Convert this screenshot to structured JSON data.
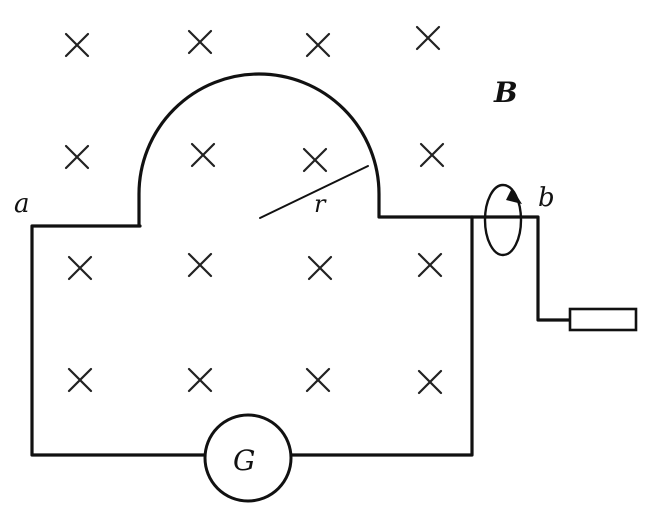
{
  "labels": {
    "field": "B",
    "point_a": "a",
    "point_b": "b",
    "radius": "r",
    "galvanometer": "G"
  },
  "field_symbol": "cross-into-page"
}
